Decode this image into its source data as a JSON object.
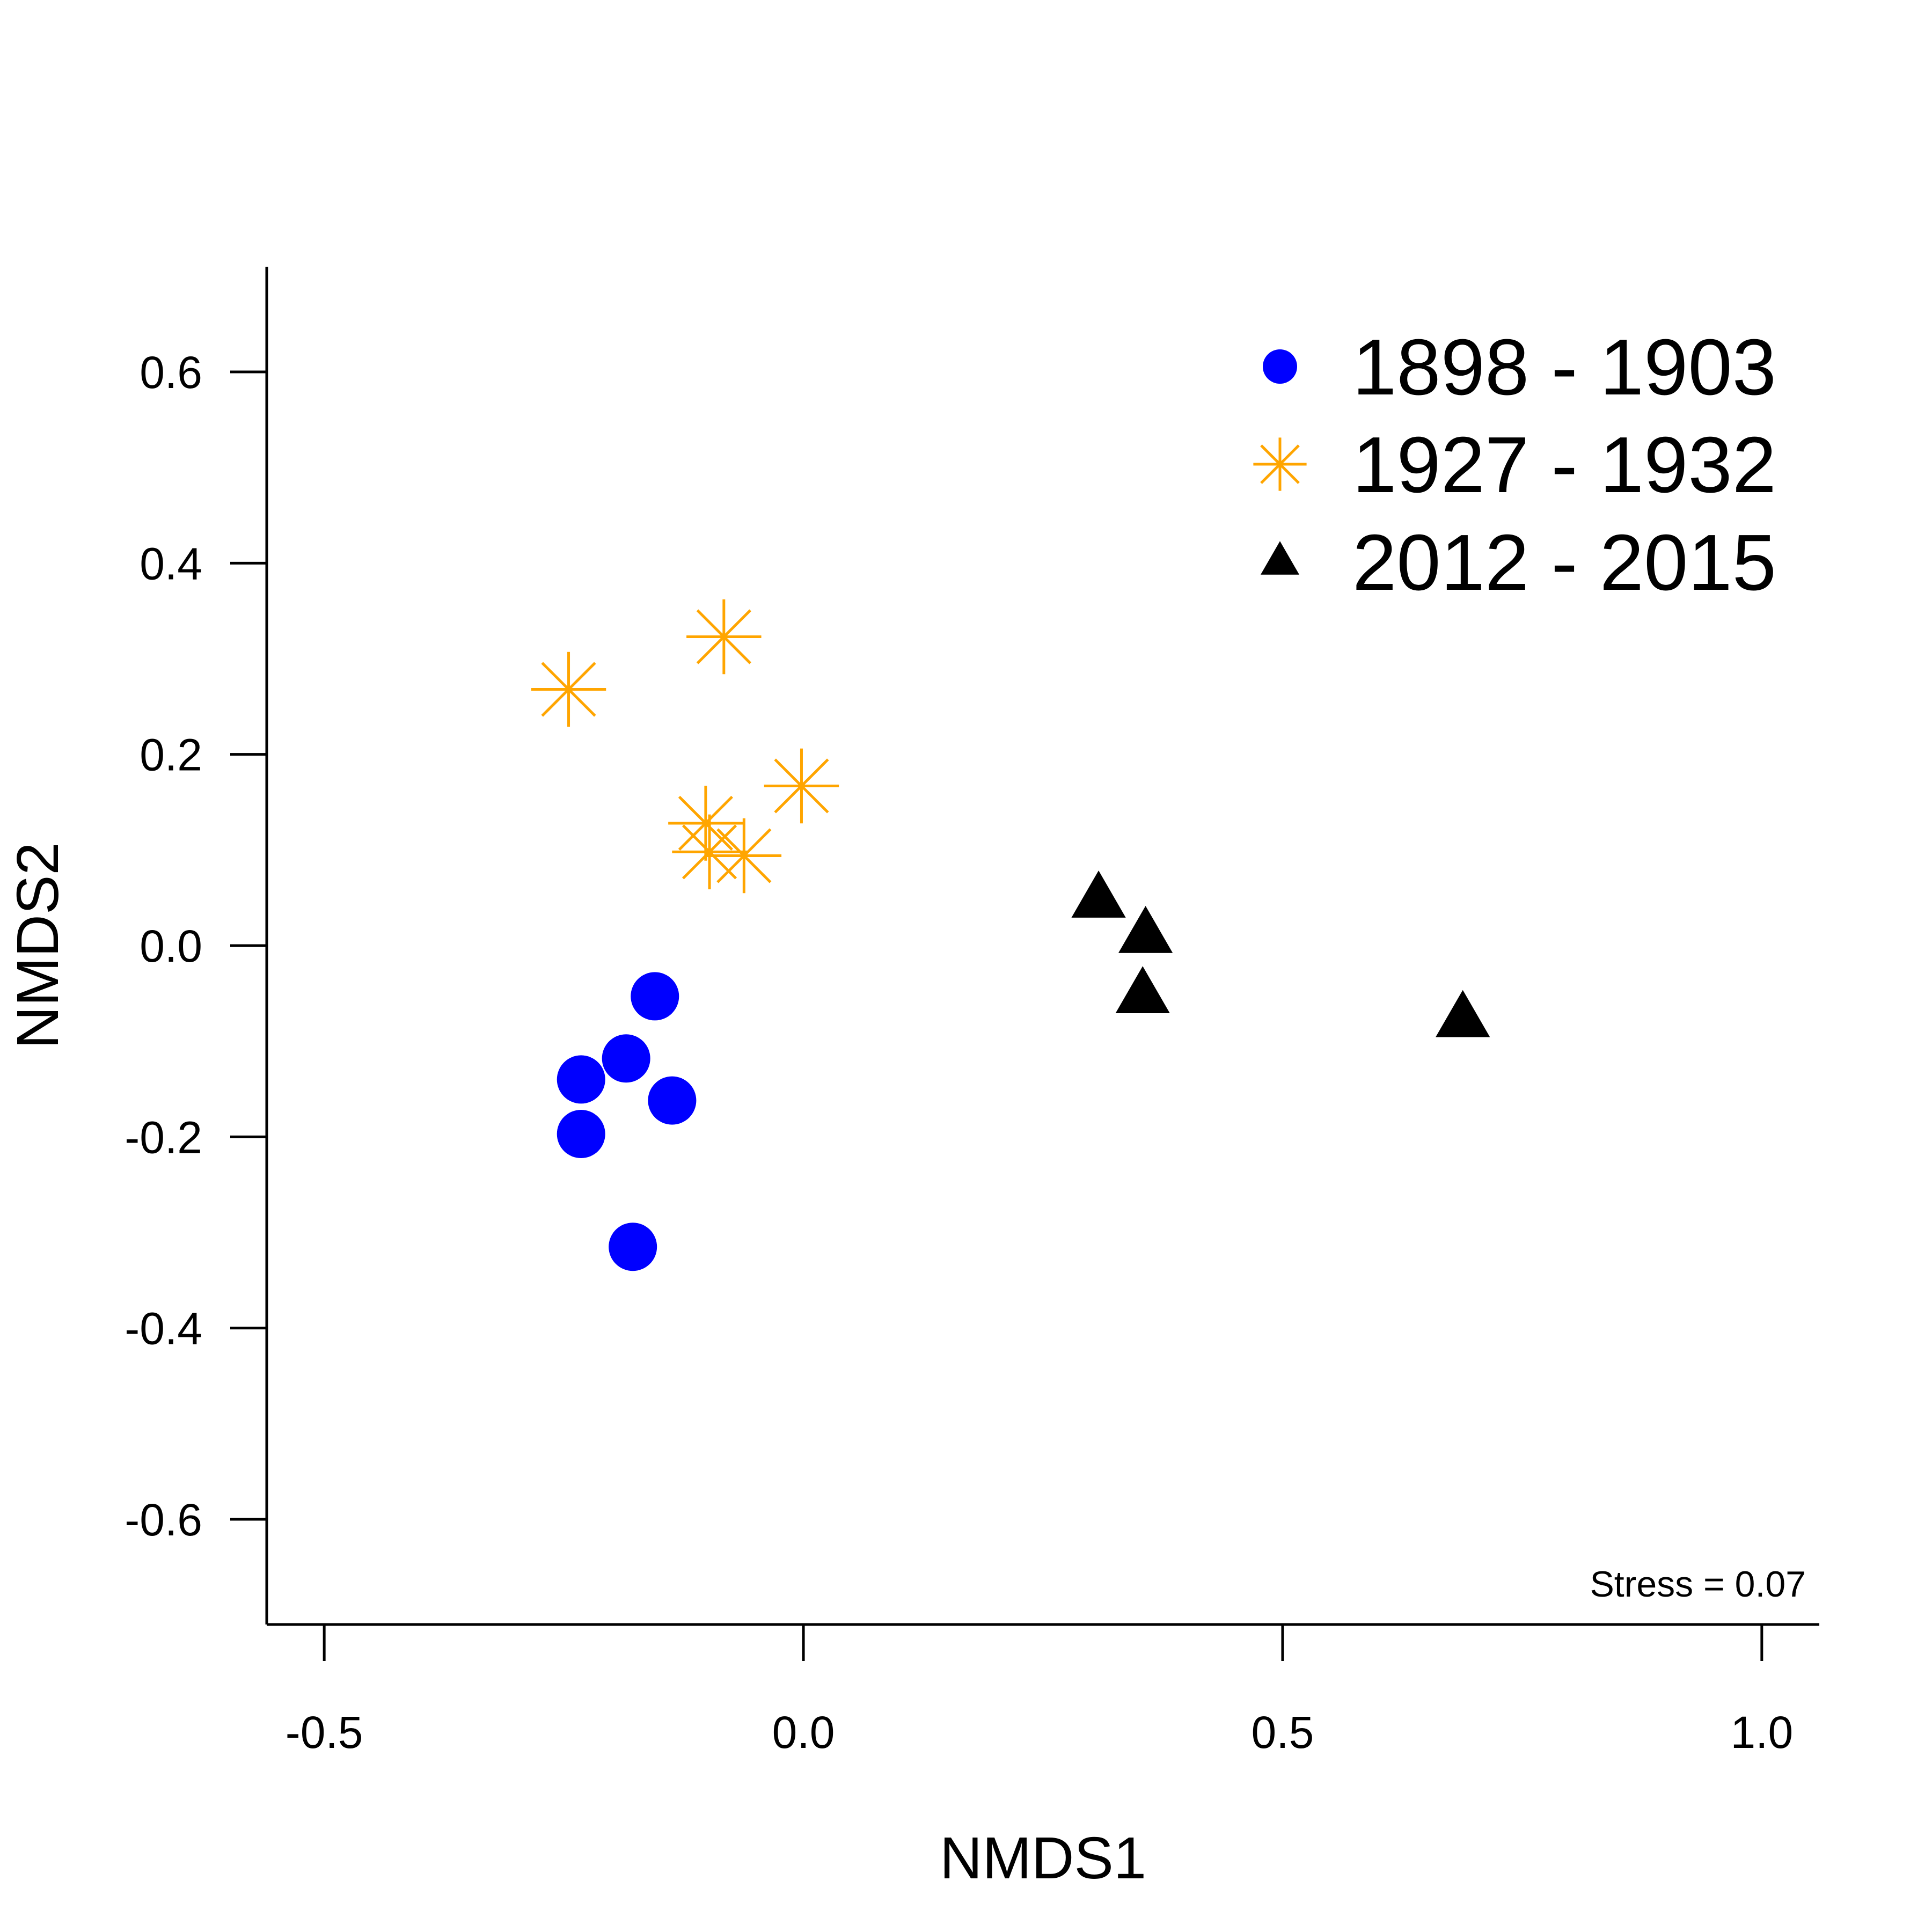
{
  "chart_data": {
    "type": "scatter",
    "title": "",
    "xlabel": "NMDS1",
    "ylabel": "NMDS2",
    "xlim": [
      -0.56,
      1.06
    ],
    "ylim": [
      -0.71,
      0.71
    ],
    "xticks": [
      -0.5,
      0.0,
      0.5,
      1.0
    ],
    "xtick_labels": [
      "-0.5",
      "0.0",
      "0.5",
      "1.0"
    ],
    "yticks": [
      -0.6,
      -0.4,
      -0.2,
      0.0,
      0.2,
      0.4,
      0.6
    ],
    "ytick_labels": [
      "-0.6",
      "-0.4",
      "-0.2",
      "0.0",
      "0.2",
      "0.4",
      "0.6"
    ],
    "grid": false,
    "legend_position": "top-right",
    "annotation": "Stress = 0.07",
    "series": [
      {
        "name": "1898 - 1903",
        "marker": "circle",
        "color": "#0000ff",
        "points": [
          {
            "x": -0.155,
            "y": -0.053
          },
          {
            "x": -0.185,
            "y": -0.118
          },
          {
            "x": -0.232,
            "y": -0.14
          },
          {
            "x": -0.137,
            "y": -0.162
          },
          {
            "x": -0.232,
            "y": -0.197
          },
          {
            "x": -0.178,
            "y": -0.315
          }
        ]
      },
      {
        "name": "1927 - 1932",
        "marker": "asterisk",
        "color": "#ffa500",
        "points": [
          {
            "x": -0.245,
            "y": 0.268
          },
          {
            "x": -0.083,
            "y": 0.323
          },
          {
            "x": -0.002,
            "y": 0.167
          },
          {
            "x": -0.102,
            "y": 0.128
          },
          {
            "x": -0.098,
            "y": 0.098
          },
          {
            "x": -0.062,
            "y": 0.094
          }
        ]
      },
      {
        "name": "2012 - 2015",
        "marker": "triangle",
        "color": "#000000",
        "points": [
          {
            "x": 0.308,
            "y": 0.048
          },
          {
            "x": 0.357,
            "y": 0.011
          },
          {
            "x": 0.354,
            "y": -0.052
          },
          {
            "x": 0.688,
            "y": -0.077
          }
        ]
      }
    ]
  }
}
